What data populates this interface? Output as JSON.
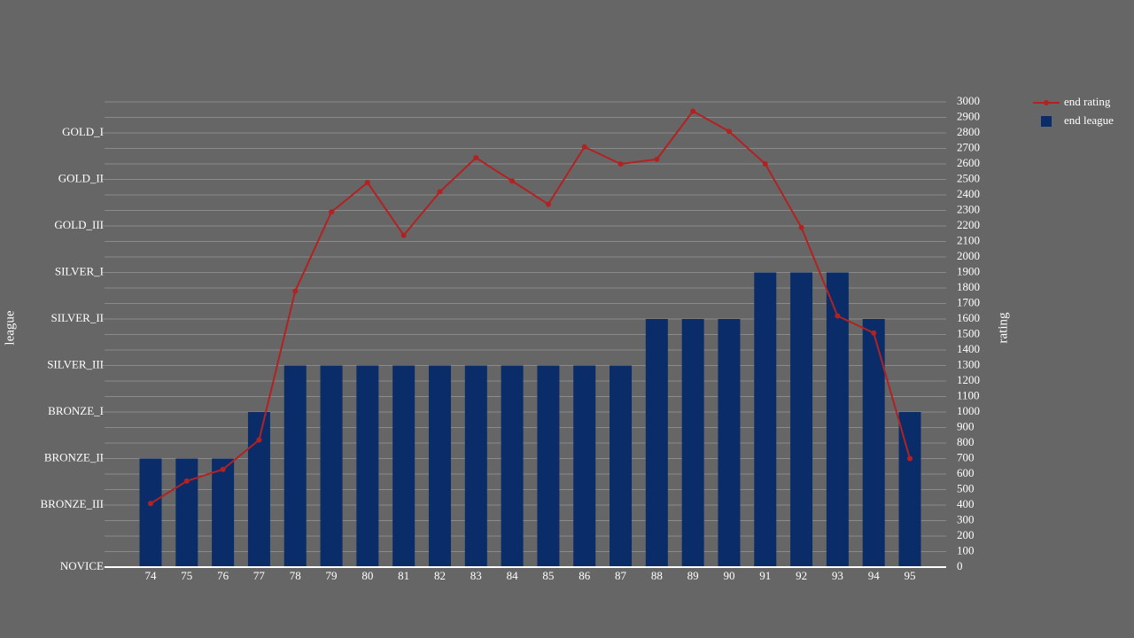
{
  "chart_data": {
    "type": "bar",
    "categories": [
      "74",
      "75",
      "76",
      "77",
      "78",
      "79",
      "80",
      "81",
      "82",
      "83",
      "84",
      "85",
      "86",
      "87",
      "88",
      "89",
      "90",
      "91",
      "92",
      "93",
      "94",
      "95"
    ],
    "y_label": "league",
    "y2_label": "rating",
    "series": [
      {
        "name": "end league",
        "type": "bar",
        "axis": "y",
        "color": "#0a2d69",
        "values": [
          700,
          700,
          700,
          1000,
          1300,
          1300,
          1300,
          1300,
          1300,
          1300,
          1300,
          1300,
          1300,
          1300,
          1600,
          1600,
          1600,
          1900,
          1900,
          1900,
          1600,
          1000
        ]
      },
      {
        "name": "end rating",
        "type": "line",
        "axis": "y2",
        "color": "#b22222",
        "values": [
          410,
          555,
          630,
          820,
          1780,
          2290,
          2480,
          2140,
          2420,
          2640,
          2490,
          2340,
          2710,
          2600,
          2630,
          2940,
          2810,
          2600,
          2190,
          1620,
          1510,
          700
        ]
      }
    ],
    "ylim": [
      0,
      3000
    ],
    "yticks": [
      {
        "value": 0,
        "label": "NOVICE"
      },
      {
        "value": 400,
        "label": "BRONZE_III"
      },
      {
        "value": 700,
        "label": "BRONZE_II"
      },
      {
        "value": 1000,
        "label": "BRONZE_I"
      },
      {
        "value": 1300,
        "label": "SILVER_III"
      },
      {
        "value": 1600,
        "label": "SILVER_II"
      },
      {
        "value": 1900,
        "label": "SILVER_I"
      },
      {
        "value": 2200,
        "label": "GOLD_III"
      },
      {
        "value": 2500,
        "label": "GOLD_II"
      },
      {
        "value": 2800,
        "label": "GOLD_I"
      }
    ],
    "y2lim": [
      0,
      3000
    ],
    "y2ticks": [
      0,
      100,
      200,
      300,
      400,
      500,
      600,
      700,
      800,
      900,
      1000,
      1100,
      1200,
      1300,
      1400,
      1500,
      1600,
      1700,
      1800,
      1900,
      2000,
      2100,
      2200,
      2300,
      2400,
      2500,
      2600,
      2700,
      2800,
      2900,
      3000
    ],
    "grid": true,
    "legend": "top-right"
  }
}
